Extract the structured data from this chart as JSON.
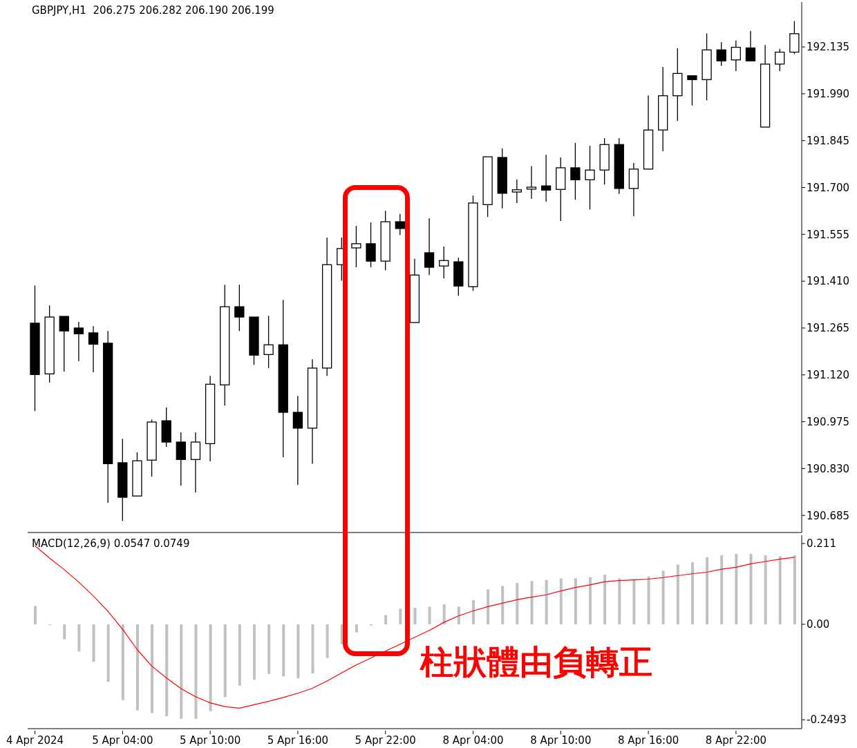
{
  "chart_data": [
    {
      "type": "candlestick",
      "title": "GBPJPY,H1  206.275 206.282 206.190 206.199",
      "categories": [
        null,
        null,
        null,
        null,
        null,
        null,
        null,
        null,
        null,
        null,
        null,
        null,
        null,
        null,
        null,
        null,
        null,
        null,
        null,
        null,
        null,
        null,
        null,
        null,
        null,
        null,
        null,
        null,
        null,
        null,
        null,
        null,
        null,
        null,
        null,
        null,
        null,
        null,
        null,
        null,
        null,
        null,
        null,
        null,
        null,
        null,
        null,
        null,
        null,
        null,
        null,
        null,
        null
      ],
      "ohlc": [
        [
          191.28,
          191.397,
          191.008,
          191.121
        ],
        [
          191.123,
          191.335,
          191.096,
          191.299
        ],
        [
          191.301,
          191.301,
          191.13,
          191.256
        ],
        [
          191.265,
          191.284,
          191.162,
          191.247
        ],
        [
          191.25,
          191.271,
          191.128,
          191.215
        ],
        [
          191.218,
          191.256,
          190.724,
          190.845
        ],
        [
          190.848,
          190.922,
          190.668,
          190.741
        ],
        [
          190.745,
          190.88,
          190.745,
          190.854
        ],
        [
          190.856,
          190.982,
          190.805,
          190.974
        ],
        [
          190.978,
          191.019,
          190.897,
          190.912
        ],
        [
          190.912,
          190.942,
          190.777,
          190.858
        ],
        [
          190.858,
          190.942,
          190.756,
          190.912
        ],
        [
          190.907,
          191.117,
          190.852,
          191.091
        ],
        [
          191.089,
          191.399,
          191.025,
          191.331
        ],
        [
          191.331,
          191.399,
          191.256,
          191.299
        ],
        [
          191.299,
          191.299,
          191.151,
          191.181
        ],
        [
          191.183,
          191.303,
          191.141,
          191.213
        ],
        [
          191.213,
          191.352,
          190.865,
          191.004
        ],
        [
          191.004,
          191.055,
          190.779,
          190.955
        ],
        [
          190.955,
          191.168,
          190.845,
          191.141
        ],
        [
          191.141,
          191.545,
          191.117,
          191.461
        ],
        [
          191.461,
          191.545,
          191.412,
          191.511
        ],
        [
          191.513,
          191.581,
          191.453,
          191.526
        ],
        [
          191.526,
          191.592,
          191.453,
          191.472
        ],
        [
          191.472,
          191.628,
          191.444,
          191.594
        ],
        [
          191.594,
          191.618,
          191.553,
          191.573
        ],
        [
          191.282,
          191.479,
          191.282,
          191.429
        ],
        [
          191.498,
          191.605,
          191.429,
          191.453
        ],
        [
          191.457,
          191.517,
          191.419,
          191.474
        ],
        [
          191.47,
          191.483,
          191.365,
          191.395
        ],
        [
          191.393,
          191.675,
          191.38,
          191.652
        ],
        [
          191.647,
          191.795,
          191.609,
          191.795
        ],
        [
          191.793,
          191.821,
          191.635,
          191.682
        ],
        [
          191.686,
          191.725,
          191.652,
          191.693
        ],
        [
          191.695,
          191.766,
          191.665,
          191.701
        ],
        [
          191.705,
          191.801,
          191.656,
          191.692
        ],
        [
          191.694,
          191.793,
          191.596,
          191.761
        ],
        [
          191.761,
          191.838,
          191.662,
          191.724
        ],
        [
          191.724,
          191.829,
          191.632,
          191.754
        ],
        [
          191.754,
          191.853,
          191.709,
          191.833
        ],
        [
          191.833,
          191.853,
          191.68,
          191.697
        ],
        [
          191.697,
          191.776,
          191.611,
          191.757
        ],
        [
          191.757,
          191.985,
          191.757,
          191.878
        ],
        [
          191.878,
          192.073,
          191.812,
          191.984
        ],
        [
          191.984,
          192.131,
          191.906,
          192.053
        ],
        [
          192.046,
          192.046,
          191.954,
          192.034
        ],
        [
          192.034,
          192.177,
          191.97,
          192.126
        ],
        [
          192.126,
          192.15,
          192.077,
          192.092
        ],
        [
          192.095,
          192.155,
          192.06,
          192.134
        ],
        [
          192.132,
          192.185,
          192.092,
          192.092
        ],
        [
          191.887,
          192.141,
          191.887,
          192.082
        ],
        [
          192.082,
          192.129,
          192.06,
          192.119
        ],
        [
          192.119,
          192.215,
          192.113,
          192.176
        ]
      ],
      "ylim": [
        190.632,
        192.274
      ],
      "yticks": [
        {
          "value": 190.685,
          "label": "190.685"
        },
        {
          "value": 190.83,
          "label": "190.830"
        },
        190.975,
        {
          "value": 191.12,
          "label": "191.120"
        },
        {
          "value": 191.265,
          "label": "191.265"
        },
        {
          "value": 191.41,
          "label": "191.410"
        },
        191.555,
        {
          "value": 191.7,
          "label": "191.700"
        },
        191.845,
        {
          "value": 191.99,
          "label": "191.990"
        },
        192.135
      ],
      "tick_labels": "y"
    },
    {
      "type": "bar",
      "title": "MACD(12,26,9) 0.0547 0.0749",
      "categories": [
        "4 Apr 2024",
        null,
        null,
        null,
        null,
        null,
        "5 Apr 04:00",
        null,
        null,
        null,
        null,
        null,
        "5 Apr 10:00",
        null,
        null,
        null,
        null,
        null,
        "5 Apr 16:00",
        null,
        null,
        null,
        null,
        null,
        "5 Apr 22:00",
        null,
        null,
        null,
        null,
        null,
        "8 Apr 04:00",
        null,
        null,
        null,
        null,
        null,
        "8 Apr 10:00",
        null,
        null,
        null,
        null,
        null,
        "8 Apr 16:00",
        null,
        null,
        null,
        null,
        null,
        "8 Apr 22:00",
        null,
        null,
        null,
        null
      ],
      "series": [
        {
          "type": "bar",
          "color": "#c0c0c0",
          "values": [
            0.048,
            -0.002,
            -0.039,
            -0.071,
            -0.098,
            -0.15,
            -0.198,
            -0.225,
            -0.232,
            -0.24,
            -0.247,
            -0.247,
            -0.227,
            -0.19,
            -0.16,
            -0.145,
            -0.13,
            -0.136,
            -0.141,
            -0.128,
            -0.088,
            -0.052,
            -0.021,
            -0.003,
            0.024,
            0.041,
            0.043,
            0.046,
            0.052,
            0.046,
            0.063,
            0.091,
            0.1,
            0.108,
            0.113,
            0.116,
            0.12,
            0.12,
            0.123,
            0.13,
            0.12,
            0.116,
            0.125,
            0.14,
            0.156,
            0.162,
            0.175,
            0.18,
            0.184,
            0.184,
            0.18,
            0.178,
            0.18
          ]
        },
        {
          "type": "line",
          "color": "#ff0000",
          "values": [
            0.205,
            0.173,
            0.143,
            0.11,
            0.074,
            0.034,
            -0.013,
            -0.066,
            -0.109,
            -0.14,
            -0.168,
            -0.189,
            -0.205,
            -0.215,
            -0.219,
            -0.21,
            -0.201,
            -0.191,
            -0.18,
            -0.167,
            -0.148,
            -0.127,
            -0.106,
            -0.088,
            -0.07,
            -0.052,
            -0.034,
            -0.016,
            0.005,
            0.022,
            0.035,
            0.046,
            0.055,
            0.064,
            0.071,
            0.077,
            0.087,
            0.096,
            0.103,
            0.111,
            0.114,
            0.116,
            0.118,
            0.122,
            0.127,
            0.132,
            0.136,
            0.144,
            0.149,
            0.158,
            0.164,
            0.17,
            0.175
          ]
        }
      ],
      "ylim": [
        -0.2725,
        0.2325
      ],
      "yticks": [
        -0.2493,
        {
          "value": 0,
          "label": "0.00"
        },
        0.211
      ],
      "annotations": [
        "柱狀體由負轉正"
      ]
    }
  ]
}
